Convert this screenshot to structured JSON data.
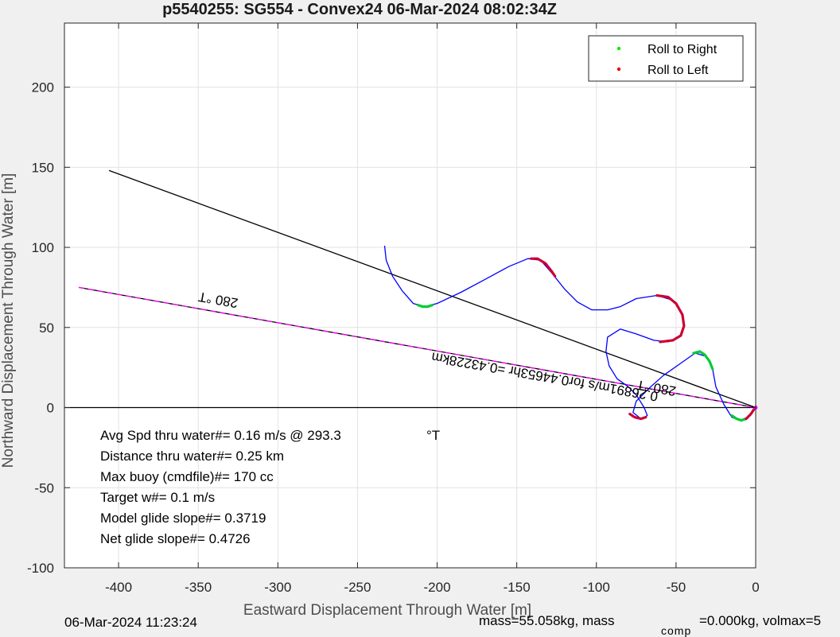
{
  "chart_data": {
    "type": "line",
    "title": "p5540255: SG554 - Convex24 06-Mar-2024 08:02:34Z",
    "xlabel": "Eastward Displacement Through Water [m]",
    "ylabel": "Northward Displacement Through Water [m]",
    "xlim": [
      -434,
      0
    ],
    "ylim": [
      -100,
      240
    ],
    "x_ticks": [
      -400,
      -350,
      -300,
      -250,
      -200,
      -150,
      -100,
      -50,
      0
    ],
    "x_tick_labels": [
      "-400",
      "-350",
      "-300",
      "-250",
      "-200",
      "-150",
      "-100",
      "-50",
      "0"
    ],
    "y_ticks": [
      -100,
      -50,
      0,
      50,
      100,
      150,
      200
    ],
    "y_tick_labels": [
      "-100",
      "-50",
      "0",
      "50",
      "100",
      "150",
      "200"
    ],
    "grid": true,
    "legend": {
      "placement": "top-right",
      "entries": [
        {
          "label": "Roll to Right",
          "color": "#00ee00"
        },
        {
          "label": "Roll to Left",
          "color": "#ee0000"
        }
      ]
    },
    "series": [
      {
        "name": "track",
        "color": "#0000ff",
        "points": [
          [
            -233,
            101
          ],
          [
            -232,
            92
          ],
          [
            -228,
            82
          ],
          [
            -222,
            73
          ],
          [
            -215,
            65
          ],
          [
            -208,
            63
          ],
          [
            -200,
            65
          ],
          [
            -185,
            72
          ],
          [
            -170,
            80
          ],
          [
            -155,
            88
          ],
          [
            -143,
            93
          ],
          [
            -135,
            92
          ],
          [
            -128,
            84
          ],
          [
            -120,
            74
          ],
          [
            -112,
            66
          ],
          [
            -103,
            61
          ],
          [
            -93,
            61
          ],
          [
            -85,
            63
          ],
          [
            -75,
            68
          ],
          [
            -62,
            70
          ],
          [
            -52,
            67
          ],
          [
            -47,
            60
          ],
          [
            -45,
            52
          ],
          [
            -47,
            45
          ],
          [
            -55,
            41
          ],
          [
            -64,
            42
          ],
          [
            -75,
            46
          ],
          [
            -85,
            49
          ],
          [
            -93,
            44
          ],
          [
            -94,
            35
          ],
          [
            -92,
            26
          ],
          [
            -87,
            18
          ],
          [
            -80,
            13
          ],
          [
            -75,
            8
          ],
          [
            -70,
            0
          ],
          [
            -68,
            -5
          ],
          [
            -72,
            -7
          ],
          [
            -77,
            -3
          ],
          [
            -75,
            4
          ],
          [
            -67,
            12
          ],
          [
            -58,
            20
          ],
          [
            -48,
            27
          ],
          [
            -38,
            34
          ],
          [
            -31,
            32
          ],
          [
            -27,
            24
          ],
          [
            -25,
            13
          ],
          [
            -20,
            2
          ],
          [
            -15,
            -6
          ],
          [
            -10,
            -8
          ],
          [
            -5,
            -6
          ],
          [
            -2,
            -2
          ],
          [
            0,
            0
          ]
        ]
      },
      {
        "name": "roll-right-segments",
        "color": "#00cc33",
        "segments": [
          [
            [
              -212,
              64
            ],
            [
              -209,
              63
            ],
            [
              -206,
              63
            ],
            [
              -203,
              64
            ]
          ],
          [
            [
              -39,
              34
            ],
            [
              -35,
              35
            ],
            [
              -32,
              33
            ],
            [
              -29,
              29
            ],
            [
              -27,
              24
            ]
          ],
          [
            [
              -15,
              -5
            ],
            [
              -12,
              -7
            ],
            [
              -9,
              -8
            ],
            [
              -6,
              -7
            ]
          ]
        ]
      },
      {
        "name": "roll-left-segments",
        "color": "#cc0033",
        "segments": [
          [
            [
              -141,
              93
            ],
            [
              -137,
              93
            ],
            [
              -132,
              90
            ],
            [
              -128,
              85
            ],
            [
              -126,
              82
            ]
          ],
          [
            [
              -62,
              70
            ],
            [
              -55,
              69
            ],
            [
              -50,
              65
            ],
            [
              -46,
              58
            ],
            [
              -45,
              51
            ],
            [
              -47,
              45
            ],
            [
              -52,
              42
            ],
            [
              -60,
              41
            ]
          ],
          [
            [
              -79,
              -4
            ],
            [
              -76,
              -6
            ],
            [
              -72,
              -7
            ],
            [
              -69,
              -6
            ]
          ],
          [
            [
              -6,
              -7
            ],
            [
              -3,
              -4
            ],
            [
              -1,
              -1
            ]
          ]
        ]
      },
      {
        "name": "heading-line",
        "color": "#000000",
        "points": [
          [
            -406,
            148
          ],
          [
            0,
            0
          ]
        ]
      },
      {
        "name": "current-line",
        "color": "#000000",
        "dashed_color": "#ff00ff",
        "points": [
          [
            -425,
            75
          ],
          [
            0,
            0
          ]
        ]
      },
      {
        "name": "zero-line",
        "color": "#000000",
        "points": [
          [
            -434,
            0
          ],
          [
            0,
            0
          ]
        ]
      }
    ],
    "annotations": [
      {
        "text": "280 °T",
        "x": -337,
        "y": 70,
        "rotation": 190
      },
      {
        "text": "280 °T",
        "x": -62,
        "y": 15,
        "rotation": 190
      },
      {
        "text": "0.26891m/s for0.44653hr =0.43228km",
        "x": -132,
        "y": 22,
        "rotation": 190
      }
    ],
    "info_lines": [
      "Avg Spd thru water#=  0.16 m/s @ 293.3",
      "Distance thru water#=  0.25 km",
      "Max buoy (cmdfile)#= 170 cc",
      "Target w#= 0.1 m/s",
      "Model glide slope#= 0.3719",
      "Net glide slope#= 0.4726"
    ],
    "info_unit": "°T",
    "footer_left": "06-Mar-2024 11:23:24",
    "footer_right_a": "mass=55.058kg, mass",
    "footer_right_sub": "comp",
    "footer_right_b": "=0.000kg, volmax=5"
  }
}
